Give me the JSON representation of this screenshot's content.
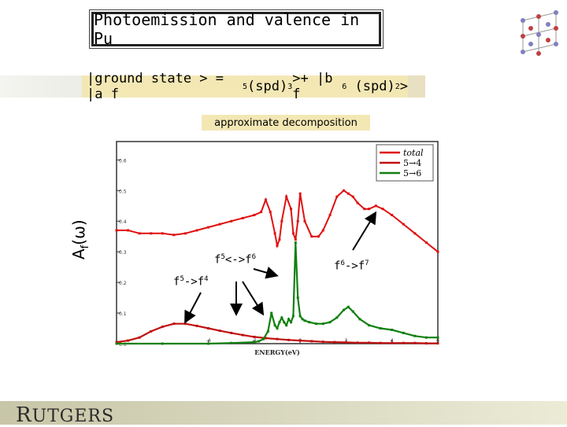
{
  "title": "Photoemission and valence in Pu",
  "ground_state": {
    "prefix": "|ground state > = |a f",
    "exp1": "5",
    "mid1": "(spd)",
    "exp2": "3",
    "mid2": ">+ |b f",
    "exp3": "6",
    "mid3": " (spd)",
    "exp4": "2",
    "suffix": ">"
  },
  "subtitle": "approximate decomposition",
  "ylabel": {
    "main": "A",
    "sub": "f",
    "paren": "(ω)"
  },
  "annotations": {
    "a1": {
      "base": "f",
      "e1": "5",
      "arrow": "->f",
      "e2": "4"
    },
    "a2": {
      "base": "f",
      "e1": "5",
      "arrow": "<->f",
      "e2": "6"
    },
    "a3": {
      "base": "f",
      "e1": "6",
      "arrow": "->f",
      "e2": "7"
    }
  },
  "logo": {
    "first": "R",
    "rest": "UTGERS"
  },
  "chart_data": {
    "type": "line",
    "xlabel": "ENERGY(eV)",
    "ylabel": "",
    "xlim": [
      -8,
      6
    ],
    "ylim": [
      0,
      0.66
    ],
    "x_ticks": [
      -4,
      -2,
      0,
      2,
      4,
      6
    ],
    "x_tick_labels": [
      "-4",
      "-2",
      "0",
      "2",
      "4",
      "6"
    ],
    "y_ticks": [
      0,
      0.1,
      0.2,
      0.3,
      0.4,
      0.5,
      0.6
    ],
    "y_tick_labels": [
      "0.0",
      "0.1",
      "0.2",
      "0.3",
      "0.4",
      "0.5",
      "0.6"
    ],
    "legend_position": "top-right",
    "series": [
      {
        "name": "total",
        "color": "#e01010",
        "x": [
          -8,
          -7.5,
          -7,
          -6.5,
          -6,
          -5.5,
          -5,
          -4.5,
          -4,
          -3.5,
          -3,
          -2.5,
          -2,
          -1.7,
          -1.5,
          -1.3,
          -1.1,
          -1.0,
          -0.9,
          -0.8,
          -0.6,
          -0.4,
          -0.3,
          -0.2,
          -0.1,
          0,
          0.2,
          0.5,
          0.8,
          1.0,
          1.3,
          1.6,
          1.9,
          2.1,
          2.3,
          2.5,
          2.8,
          3.0,
          3.3,
          3.6,
          4.0,
          4.5,
          5.0,
          5.5,
          6.0
        ],
        "y": [
          0.37,
          0.37,
          0.36,
          0.36,
          0.36,
          0.355,
          0.36,
          0.37,
          0.38,
          0.39,
          0.4,
          0.41,
          0.42,
          0.43,
          0.47,
          0.43,
          0.36,
          0.32,
          0.34,
          0.4,
          0.48,
          0.44,
          0.36,
          0.34,
          0.4,
          0.49,
          0.4,
          0.35,
          0.35,
          0.37,
          0.42,
          0.48,
          0.5,
          0.49,
          0.48,
          0.46,
          0.44,
          0.44,
          0.45,
          0.44,
          0.42,
          0.39,
          0.36,
          0.33,
          0.3
        ]
      },
      {
        "name": "5→4",
        "color": "#c01010",
        "x": [
          -8,
          -7.5,
          -7,
          -6.5,
          -6,
          -5.5,
          -5,
          -4.5,
          -4,
          -3.5,
          -3,
          -2.5,
          -2,
          -1.5,
          -1.0,
          -0.5,
          0,
          0.5,
          1.0,
          1.5,
          2.0,
          2.5,
          3.0,
          3.5,
          4.0,
          4.5,
          5.0,
          5.5,
          6.0
        ],
        "y": [
          0.005,
          0.01,
          0.02,
          0.04,
          0.055,
          0.065,
          0.065,
          0.058,
          0.05,
          0.042,
          0.035,
          0.028,
          0.022,
          0.018,
          0.015,
          0.012,
          0.01,
          0.008,
          0.006,
          0.005,
          0.004,
          0.003,
          0.003,
          0.002,
          0.002,
          0.002,
          0.002,
          0.001,
          0.001
        ]
      },
      {
        "name": "5→6",
        "color": "#108010",
        "x": [
          -8,
          -6,
          -4,
          -3,
          -2,
          -1.8,
          -1.6,
          -1.4,
          -1.25,
          -1.1,
          -1.0,
          -0.9,
          -0.8,
          -0.7,
          -0.6,
          -0.5,
          -0.4,
          -0.3,
          -0.2,
          -0.1,
          0,
          0.1,
          0.2,
          0.4,
          0.7,
          1.0,
          1.3,
          1.6,
          1.9,
          2.1,
          2.3,
          2.6,
          3.0,
          3.5,
          4.0,
          4.5,
          5.0,
          5.5,
          6.0
        ],
        "y": [
          0,
          0,
          0,
          0.002,
          0.005,
          0.008,
          0.015,
          0.04,
          0.1,
          0.06,
          0.05,
          0.07,
          0.085,
          0.07,
          0.06,
          0.08,
          0.07,
          0.09,
          0.33,
          0.15,
          0.09,
          0.08,
          0.075,
          0.07,
          0.065,
          0.065,
          0.07,
          0.085,
          0.11,
          0.12,
          0.105,
          0.08,
          0.06,
          0.05,
          0.045,
          0.035,
          0.025,
          0.02,
          0.02
        ]
      }
    ]
  }
}
